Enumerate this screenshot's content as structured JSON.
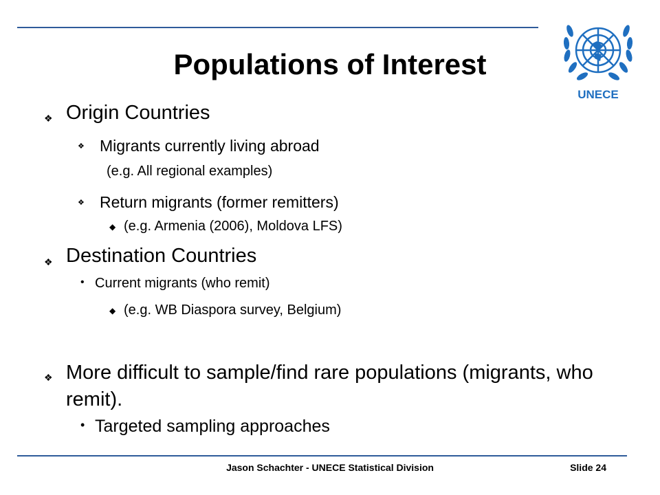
{
  "slide": {
    "title": "Populations of Interest",
    "logo_text": "UNECE",
    "bullets": [
      "Origin Countries",
      "Migrants currently living abroad",
      "(e.g. All regional examples)",
      "Return migrants (former remitters)",
      "(e.g. Armenia (2006), Moldova LFS)",
      "Destination Countries",
      "Current migrants (who remit)",
      "(e.g. WB Diaspora survey, Belgium)",
      "More difficult to sample/find rare populations (migrants, who remit).",
      "Targeted sampling approaches"
    ],
    "footer": "Jason Schachter - UNECE Statistical Division",
    "slide_number": "Slide 24"
  }
}
